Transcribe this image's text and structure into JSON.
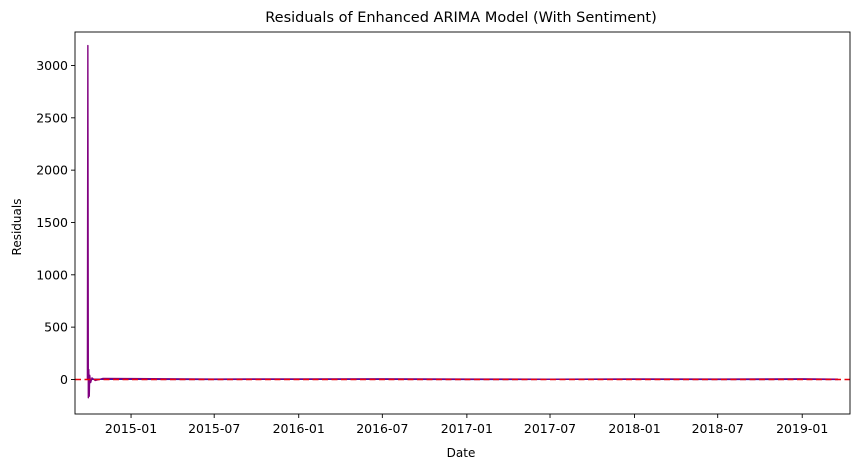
{
  "chart_data": {
    "type": "line",
    "title": "Residuals of Enhanced ARIMA Model (With Sentiment)",
    "xlabel": "Date",
    "ylabel": "Residuals",
    "xlim": [
      "2014-09-01",
      "2019-04-15"
    ],
    "ylim": [
      -330,
      3320
    ],
    "x_ticks": [
      "2015-01",
      "2015-07",
      "2016-01",
      "2016-07",
      "2017-01",
      "2017-07",
      "2018-01",
      "2018-07",
      "2019-01"
    ],
    "y_ticks": [
      0,
      500,
      1000,
      1500,
      2000,
      2500,
      3000
    ],
    "reference_line": {
      "y": 0,
      "style": "dashed",
      "color": "#e8000b"
    },
    "series": [
      {
        "color": "#800080",
        "x": [
          "2014-09-28",
          "2014-09-29",
          "2014-09-30",
          "2014-10-01",
          "2014-10-02",
          "2014-10-03",
          "2014-10-05",
          "2014-10-08",
          "2014-10-15",
          "2014-11-01",
          "2015-01-01",
          "2015-07-01",
          "2016-01-01",
          "2016-07-01",
          "2017-01-01",
          "2017-07-01",
          "2018-01-01",
          "2018-07-01",
          "2019-01-01",
          "2019-03-20"
        ],
        "y": [
          0,
          3190,
          -175,
          95,
          -160,
          40,
          -30,
          15,
          -10,
          10,
          8,
          4,
          5,
          6,
          4,
          3,
          5,
          4,
          6,
          2
        ]
      },
      {
        "color": "#1f1fbf",
        "x": [
          "2014-10-05",
          "2015-01-01",
          "2015-07-01",
          "2016-01-01",
          "2016-07-01",
          "2017-01-01",
          "2017-07-01",
          "2018-01-01",
          "2018-07-01",
          "2019-01-01",
          "2019-03-20"
        ],
        "y": [
          2,
          1,
          0,
          2,
          1,
          0,
          1,
          2,
          0,
          1,
          0
        ]
      }
    ]
  }
}
